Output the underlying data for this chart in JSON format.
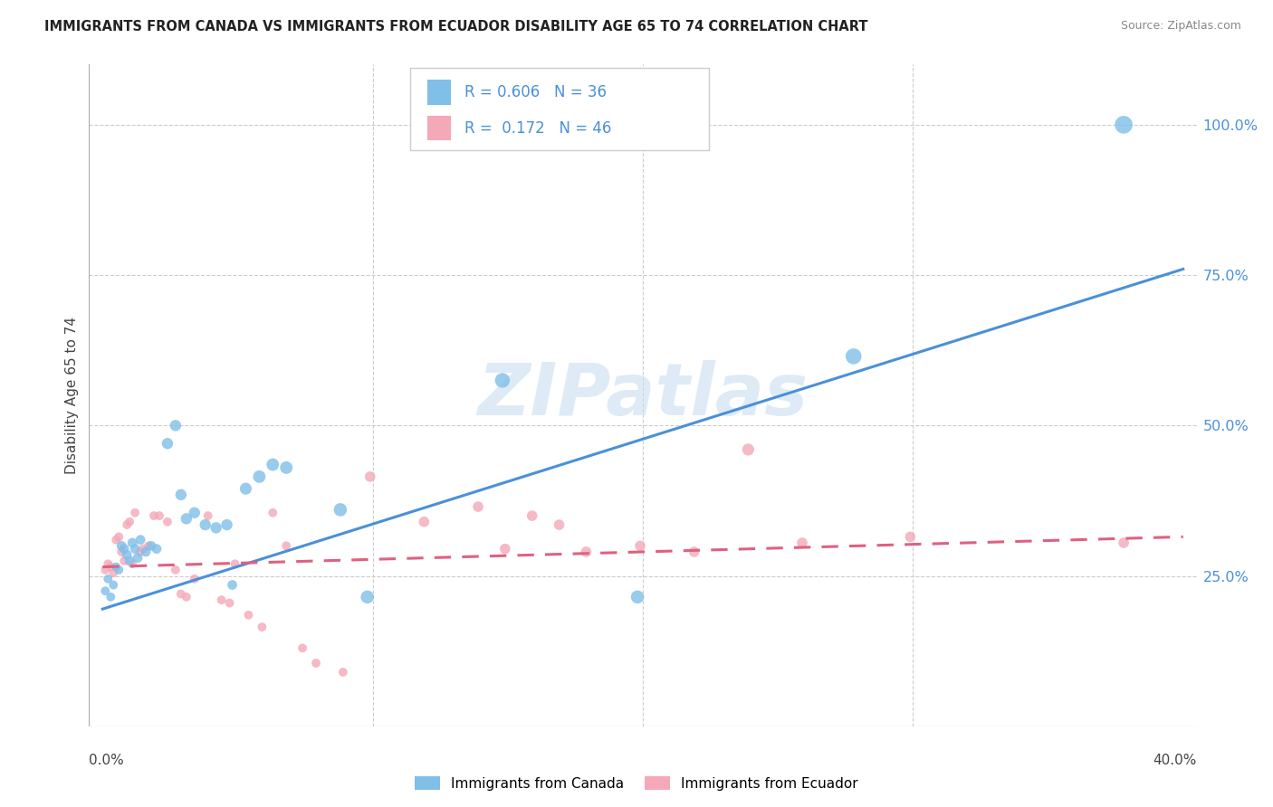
{
  "title": "IMMIGRANTS FROM CANADA VS IMMIGRANTS FROM ECUADOR DISABILITY AGE 65 TO 74 CORRELATION CHART",
  "source": "Source: ZipAtlas.com",
  "ylabel": "Disability Age 65 to 74",
  "legend_label1": "Immigrants from Canada",
  "legend_label2": "Immigrants from Ecuador",
  "r1": 0.606,
  "n1": 36,
  "r2": 0.172,
  "n2": 46,
  "color_canada": "#7fbfe8",
  "color_ecuador": "#f4a8b8",
  "color_trendline_canada": "#4a90d9",
  "color_trendline_ecuador": "#e06080",
  "color_yticks": "#4a90d9",
  "watermark_color": "#c8dff0",
  "xmin": 0.0,
  "xmax": 0.4,
  "ymin": 0.0,
  "ymax": 1.1,
  "ytick_vals": [
    0.25,
    0.5,
    0.75,
    1.0
  ],
  "ytick_labels": [
    "25.0%",
    "50.0%",
    "75.0%",
    "100.0%"
  ],
  "grid_color": "#cccccc",
  "trendline_canada_x0": 0.0,
  "trendline_canada_y0": 0.195,
  "trendline_canada_x1": 0.4,
  "trendline_canada_y1": 0.76,
  "trendline_ecuador_x0": 0.0,
  "trendline_ecuador_y0": 0.265,
  "trendline_ecuador_x1": 0.4,
  "trendline_ecuador_y1": 0.315,
  "canada_points": [
    [
      0.001,
      0.225
    ],
    [
      0.002,
      0.245
    ],
    [
      0.003,
      0.215
    ],
    [
      0.004,
      0.235
    ],
    [
      0.005,
      0.265
    ],
    [
      0.006,
      0.26
    ],
    [
      0.007,
      0.3
    ],
    [
      0.008,
      0.295
    ],
    [
      0.009,
      0.285
    ],
    [
      0.01,
      0.275
    ],
    [
      0.011,
      0.305
    ],
    [
      0.012,
      0.295
    ],
    [
      0.013,
      0.28
    ],
    [
      0.014,
      0.31
    ],
    [
      0.016,
      0.29
    ],
    [
      0.018,
      0.3
    ],
    [
      0.02,
      0.295
    ],
    [
      0.024,
      0.47
    ],
    [
      0.027,
      0.5
    ],
    [
      0.029,
      0.385
    ],
    [
      0.031,
      0.345
    ],
    [
      0.034,
      0.355
    ],
    [
      0.038,
      0.335
    ],
    [
      0.042,
      0.33
    ],
    [
      0.046,
      0.335
    ],
    [
      0.048,
      0.235
    ],
    [
      0.053,
      0.395
    ],
    [
      0.058,
      0.415
    ],
    [
      0.063,
      0.435
    ],
    [
      0.068,
      0.43
    ],
    [
      0.088,
      0.36
    ],
    [
      0.098,
      0.215
    ],
    [
      0.148,
      0.575
    ],
    [
      0.198,
      0.215
    ],
    [
      0.278,
      0.615
    ],
    [
      0.378,
      1.0
    ]
  ],
  "ecuador_points": [
    [
      0.001,
      0.26
    ],
    [
      0.002,
      0.27
    ],
    [
      0.003,
      0.265
    ],
    [
      0.004,
      0.255
    ],
    [
      0.005,
      0.31
    ],
    [
      0.006,
      0.315
    ],
    [
      0.007,
      0.29
    ],
    [
      0.008,
      0.275
    ],
    [
      0.009,
      0.335
    ],
    [
      0.01,
      0.34
    ],
    [
      0.011,
      0.27
    ],
    [
      0.012,
      0.355
    ],
    [
      0.014,
      0.29
    ],
    [
      0.015,
      0.295
    ],
    [
      0.017,
      0.3
    ],
    [
      0.019,
      0.35
    ],
    [
      0.021,
      0.35
    ],
    [
      0.024,
      0.34
    ],
    [
      0.027,
      0.26
    ],
    [
      0.029,
      0.22
    ],
    [
      0.031,
      0.215
    ],
    [
      0.034,
      0.245
    ],
    [
      0.039,
      0.35
    ],
    [
      0.044,
      0.21
    ],
    [
      0.047,
      0.205
    ],
    [
      0.049,
      0.27
    ],
    [
      0.054,
      0.185
    ],
    [
      0.059,
      0.165
    ],
    [
      0.063,
      0.355
    ],
    [
      0.068,
      0.3
    ],
    [
      0.074,
      0.13
    ],
    [
      0.079,
      0.105
    ],
    [
      0.089,
      0.09
    ],
    [
      0.099,
      0.415
    ],
    [
      0.119,
      0.34
    ],
    [
      0.139,
      0.365
    ],
    [
      0.149,
      0.295
    ],
    [
      0.159,
      0.35
    ],
    [
      0.169,
      0.335
    ],
    [
      0.179,
      0.29
    ],
    [
      0.199,
      0.3
    ],
    [
      0.219,
      0.29
    ],
    [
      0.239,
      0.46
    ],
    [
      0.259,
      0.305
    ],
    [
      0.299,
      0.315
    ],
    [
      0.378,
      0.305
    ]
  ],
  "canada_sizes": [
    50,
    50,
    50,
    50,
    50,
    50,
    60,
    60,
    60,
    60,
    60,
    60,
    60,
    60,
    60,
    60,
    60,
    80,
    80,
    80,
    80,
    80,
    80,
    80,
    80,
    60,
    90,
    100,
    100,
    100,
    110,
    110,
    140,
    110,
    160,
    200
  ],
  "ecuador_sizes": [
    50,
    50,
    50,
    50,
    50,
    50,
    50,
    50,
    50,
    50,
    50,
    50,
    50,
    50,
    50,
    50,
    50,
    50,
    50,
    50,
    50,
    50,
    50,
    50,
    50,
    50,
    50,
    50,
    50,
    50,
    50,
    50,
    50,
    70,
    70,
    70,
    70,
    70,
    70,
    70,
    70,
    70,
    90,
    70,
    70,
    70
  ]
}
